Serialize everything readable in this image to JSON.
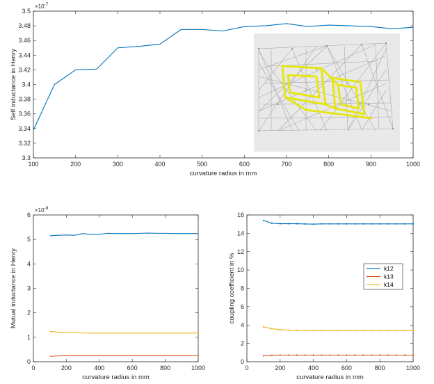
{
  "chart_data": [
    {
      "type": "line",
      "xlabel": "curvature radius in mm",
      "ylabel": "Self inductance in Henry",
      "y_exponent": "7",
      "xlim": [
        100,
        1000
      ],
      "ylim": [
        3.3,
        3.5
      ],
      "xticks": [
        "100",
        "200",
        "300",
        "400",
        "500",
        "600",
        "700",
        "800",
        "900",
        "1000"
      ],
      "yticks": [
        "3.3",
        "3.32",
        "3.34",
        "3.36",
        "3.38",
        "3.4",
        "3.42",
        "3.44",
        "3.46",
        "3.48",
        "3.5"
      ],
      "grid": false,
      "inset_image": "coil-wireframe-mesh",
      "series": [
        {
          "color": "#0072bd",
          "x": [
            100,
            150,
            200,
            250,
            300,
            350,
            400,
            450,
            500,
            550,
            600,
            650,
            700,
            750,
            800,
            850,
            900,
            950,
            1000
          ],
          "values": [
            3.338,
            3.4,
            3.42,
            3.421,
            3.45,
            3.452,
            3.455,
            3.475,
            3.475,
            3.473,
            3.479,
            3.48,
            3.483,
            3.479,
            3.481,
            3.48,
            3.479,
            3.476,
            3.478
          ]
        }
      ]
    },
    {
      "type": "line",
      "xlabel": "curvature radius in mm",
      "ylabel": "Mutual inductance in Henry",
      "y_exponent": "8",
      "xlim": [
        0,
        1000
      ],
      "ylim": [
        0,
        6
      ],
      "xticks": [
        "0",
        "200",
        "400",
        "600",
        "800",
        "1000"
      ],
      "yticks": [
        "0",
        "1",
        "2",
        "3",
        "4",
        "5",
        "6"
      ],
      "grid": false,
      "series": [
        {
          "color": "#0072bd",
          "x": [
            100,
            150,
            200,
            250,
            300,
            350,
            400,
            450,
            500,
            550,
            600,
            650,
            700,
            750,
            800,
            850,
            900,
            950,
            1000
          ],
          "values": [
            5.15,
            5.17,
            5.18,
            5.17,
            5.24,
            5.2,
            5.21,
            5.25,
            5.24,
            5.24,
            5.24,
            5.25,
            5.26,
            5.25,
            5.25,
            5.24,
            5.24,
            5.24,
            5.24
          ]
        },
        {
          "color": "#d95319",
          "x": [
            100,
            150,
            200,
            250,
            300,
            350,
            400,
            450,
            500,
            550,
            600,
            650,
            700,
            750,
            800,
            850,
            900,
            950,
            1000
          ],
          "values": [
            0.22,
            0.24,
            0.25,
            0.25,
            0.25,
            0.25,
            0.25,
            0.25,
            0.25,
            0.25,
            0.25,
            0.25,
            0.25,
            0.25,
            0.25,
            0.25,
            0.25,
            0.25,
            0.25
          ]
        },
        {
          "color": "#edb120",
          "x": [
            100,
            150,
            200,
            250,
            300,
            350,
            400,
            450,
            500,
            550,
            600,
            650,
            700,
            750,
            800,
            850,
            900,
            950,
            1000
          ],
          "values": [
            1.24,
            1.21,
            1.19,
            1.18,
            1.18,
            1.17,
            1.17,
            1.17,
            1.17,
            1.17,
            1.17,
            1.17,
            1.17,
            1.17,
            1.17,
            1.17,
            1.17,
            1.17,
            1.17
          ]
        }
      ]
    },
    {
      "type": "line",
      "xlabel": "curvature radius in mm",
      "ylabel": "coupling coefficient in %",
      "xlim": [
        0,
        1000
      ],
      "ylim": [
        0,
        16
      ],
      "xticks": [
        "0",
        "200",
        "400",
        "600",
        "800",
        "1000"
      ],
      "yticks": [
        "0",
        "2",
        "4",
        "6",
        "8",
        "10",
        "12",
        "14",
        "16"
      ],
      "grid": false,
      "legend": "right",
      "series": [
        {
          "name": "k12",
          "color": "#0072bd",
          "x": [
            100,
            150,
            200,
            250,
            300,
            350,
            400,
            450,
            500,
            550,
            600,
            650,
            700,
            750,
            800,
            850,
            900,
            950,
            1000
          ],
          "values": [
            15.4,
            15.1,
            15.05,
            15.05,
            15.05,
            15.02,
            15.0,
            15.03,
            15.03,
            15.03,
            15.03,
            15.03,
            15.03,
            15.03,
            15.03,
            15.03,
            15.03,
            15.03,
            15.03
          ]
        },
        {
          "name": "k13",
          "color": "#d95319",
          "x": [
            100,
            150,
            200,
            250,
            300,
            350,
            400,
            450,
            500,
            550,
            600,
            650,
            700,
            750,
            800,
            850,
            900,
            950,
            1000
          ],
          "values": [
            0.65,
            0.7,
            0.72,
            0.72,
            0.72,
            0.72,
            0.72,
            0.72,
            0.72,
            0.72,
            0.72,
            0.72,
            0.72,
            0.72,
            0.72,
            0.72,
            0.72,
            0.72,
            0.72
          ]
        },
        {
          "name": "k14",
          "color": "#edb120",
          "x": [
            100,
            150,
            200,
            250,
            300,
            350,
            400,
            450,
            500,
            550,
            600,
            650,
            700,
            750,
            800,
            850,
            900,
            950,
            1000
          ],
          "values": [
            3.8,
            3.6,
            3.5,
            3.45,
            3.42,
            3.4,
            3.4,
            3.4,
            3.4,
            3.4,
            3.4,
            3.4,
            3.4,
            3.4,
            3.4,
            3.4,
            3.4,
            3.4,
            3.4
          ]
        }
      ]
    }
  ]
}
